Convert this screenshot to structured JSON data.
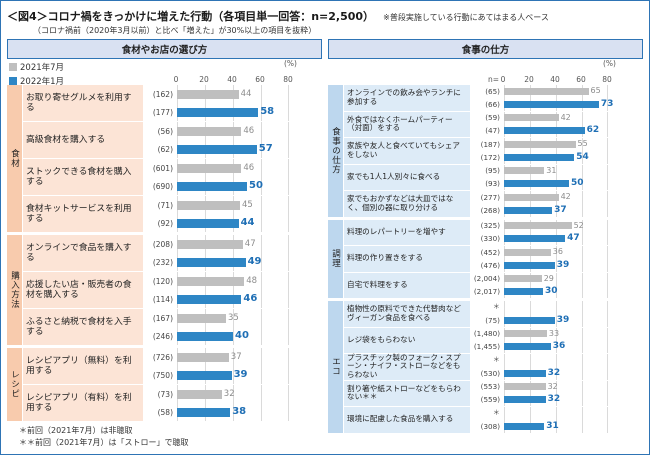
{
  "title": {
    "main": "＜図4＞コロナ禍をきっかけに増えた行動（各項目単一回答：n=2,500）",
    "note": "※普段実施している行動にあてはまる人ベース",
    "sub": "（コロナ禍前（2020年3月以前）と比べ「増えた」が30%以上の項目を抜粋）"
  },
  "legend": [
    {
      "label": "2021年7月",
      "color": "#BFBFBF"
    },
    {
      "label": "2022年1月",
      "color": "#2E86C5"
    }
  ],
  "axis": {
    "unit": "(%)",
    "n_label": "n="
  },
  "colors": {
    "bar_2021": "#BFBFBF",
    "bar_2022": "#2E86C5",
    "value_2021": "#8C8C8C",
    "value_2022": "#1F6FB5",
    "left_category_bg": "#F8CBAD",
    "left_row_bg": "#FCE4D6",
    "right_category_bg": "#BDD7EE",
    "right_row_bg": "#DDEBF7",
    "frame_border": "#2E74B5"
  },
  "footnotes": [
    "＊前回（2021年7月）は非聴取",
    "＊＊前回（2021年7月）は「ストロー」で聴取"
  ],
  "chart_data": {
    "type": "bar",
    "orientation": "horizontal",
    "value_unit": "%",
    "xlim": [
      0,
      80
    ],
    "x_ticks": [
      0,
      20,
      40,
      60,
      80
    ],
    "series": [
      "2021年7月",
      "2022年1月"
    ],
    "panels": [
      {
        "header": "食材やお店の選び方",
        "theme": "pink",
        "groups": [
          {
            "category": "食材",
            "rows": [
              {
                "label": "お取り寄せグルメを利用する",
                "n": [
                  "(162)",
                  "(177)"
                ],
                "values": [
                  44,
                  58
                ]
              },
              {
                "label": "高級食材を購入する",
                "n": [
                  "(56)",
                  "(62)"
                ],
                "values": [
                  46,
                  57
                ]
              },
              {
                "label": "ストックできる食材を購入する",
                "n": [
                  "(601)",
                  "(690)"
                ],
                "values": [
                  46,
                  50
                ]
              },
              {
                "label": "食材キットサービスを利用する",
                "n": [
                  "(71)",
                  "(92)"
                ],
                "values": [
                  45,
                  44
                ]
              }
            ]
          },
          {
            "category": "購入方法",
            "rows": [
              {
                "label": "オンラインで食品を購入する",
                "n": [
                  "(208)",
                  "(232)"
                ],
                "values": [
                  47,
                  49
                ]
              },
              {
                "label": "応援したい店・販売者の食材を購入する",
                "n": [
                  "(120)",
                  "(114)"
                ],
                "values": [
                  48,
                  46
                ]
              },
              {
                "label": "ふるさと納税で食材を入手する",
                "n": [
                  "(167)",
                  "(246)"
                ],
                "values": [
                  35,
                  40
                ]
              }
            ]
          },
          {
            "category": "レシピ",
            "rows": [
              {
                "label": "レシピアプリ（無料）を利用する",
                "n": [
                  "(726)",
                  "(750)"
                ],
                "values": [
                  37,
                  39
                ]
              },
              {
                "label": "レシピアプリ（有料）を利用する",
                "n": [
                  "(73)",
                  "(58)"
                ],
                "values": [
                  32,
                  38
                ]
              }
            ]
          }
        ]
      },
      {
        "header": "食事の仕方",
        "theme": "blue",
        "groups": [
          {
            "category": "食事の仕方",
            "rows": [
              {
                "label": "オンラインでの飲み会やランチに参加する",
                "n": [
                  "(65)",
                  "(66)"
                ],
                "values": [
                  65,
                  73
                ]
              },
              {
                "label": "外食ではなくホームパーティー（対面）をする",
                "n": [
                  "(59)",
                  "(47)"
                ],
                "values": [
                  42,
                  62
                ]
              },
              {
                "label": "家族や友人と食べていてもシェアをしない",
                "n": [
                  "(187)",
                  "(172)"
                ],
                "values": [
                  55,
                  54
                ]
              },
              {
                "label": "家でも1人1人別々に食べる",
                "n": [
                  "(95)",
                  "(93)"
                ],
                "values": [
                  31,
                  50
                ]
              },
              {
                "label": "家でもおかずなどは大皿ではなく、個別の器に取り分ける",
                "n": [
                  "(277)",
                  "(268)"
                ],
                "values": [
                  42,
                  37
                ]
              }
            ]
          },
          {
            "category": "調理",
            "rows": [
              {
                "label": "料理のレパートリーを増やす",
                "n": [
                  "(325)",
                  "(330)"
                ],
                "values": [
                  52,
                  47
                ]
              },
              {
                "label": "料理の作り置きをする",
                "n": [
                  "(452)",
                  "(476)"
                ],
                "values": [
                  36,
                  39
                ]
              },
              {
                "label": "自宅で料理をする",
                "n": [
                  "(2,004)",
                  "(2,017)"
                ],
                "values": [
                  29,
                  30
                ]
              }
            ]
          },
          {
            "category": "エコ",
            "rows": [
              {
                "label": "植物性の原料でできた代替肉などヴィーガン食品を食べる",
                "n": [
                  "＊",
                  "(75)"
                ],
                "values": [
                  null,
                  39
                ]
              },
              {
                "label": "レジ袋をもらわない",
                "n": [
                  "(1,480)",
                  "(1,455)"
                ],
                "values": [
                  33,
                  36
                ]
              },
              {
                "label": "プラスチック製のフォーク・スプーン・ナイフ・ストローなどをもらわない",
                "n": [
                  "＊",
                  "(530)"
                ],
                "values": [
                  null,
                  32
                ]
              },
              {
                "label": "割り箸や紙ストローなどをもらわない＊＊",
                "n": [
                  "(553)",
                  "(559)"
                ],
                "values": [
                  32,
                  32
                ]
              },
              {
                "label": "環境に配慮した食品を購入する",
                "n": [
                  "＊",
                  "(308)"
                ],
                "values": [
                  null,
                  31
                ]
              }
            ]
          }
        ]
      }
    ]
  }
}
